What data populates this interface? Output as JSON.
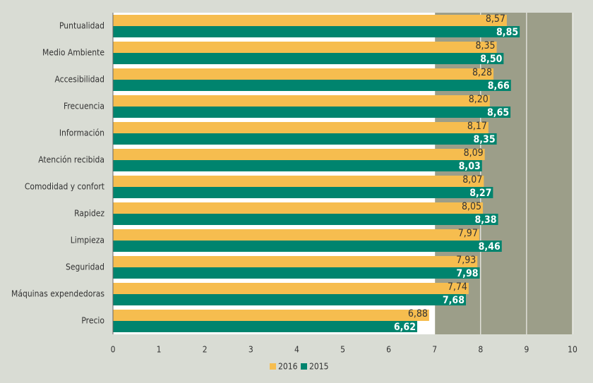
{
  "chart_data": {
    "type": "bar",
    "orientation": "horizontal",
    "categories": [
      "Puntualidad",
      "Medio Ambiente",
      "Accesibilidad",
      "Frecuencia",
      "Información",
      "Atención recibida",
      "Comodidad y confort",
      "Rapidez",
      "Limpieza",
      "Seguridad",
      "Máquinas expendedoras",
      "Precio"
    ],
    "series": [
      {
        "name": "2016",
        "color": "#f6bd4f",
        "values": [
          8.57,
          8.35,
          8.28,
          8.2,
          8.17,
          8.09,
          8.07,
          8.05,
          7.97,
          7.93,
          7.74,
          6.88
        ],
        "value_labels": [
          "8,57",
          "8,35",
          "8,28",
          "8,20",
          "8,17",
          "8,09",
          "8,07",
          "8,05",
          "7,97",
          "7,93",
          "7,74",
          "6,88"
        ]
      },
      {
        "name": "2015",
        "color": "#00846e",
        "values": [
          8.85,
          8.5,
          8.66,
          8.65,
          8.35,
          8.03,
          8.27,
          8.38,
          8.46,
          7.98,
          7.68,
          6.62
        ],
        "value_labels": [
          "8,85",
          "8,50",
          "8,66",
          "8,65",
          "8,35",
          "8,03",
          "8,27",
          "8,38",
          "8,46",
          "7,98",
          "7,68",
          "6,62"
        ]
      }
    ],
    "xlim": [
      0,
      10
    ],
    "xticks": [
      0,
      1,
      2,
      3,
      4,
      5,
      6,
      7,
      8,
      9,
      10
    ],
    "shaded_range": [
      7,
      10
    ],
    "shaded_color": "#9c9e89",
    "grid": true
  }
}
